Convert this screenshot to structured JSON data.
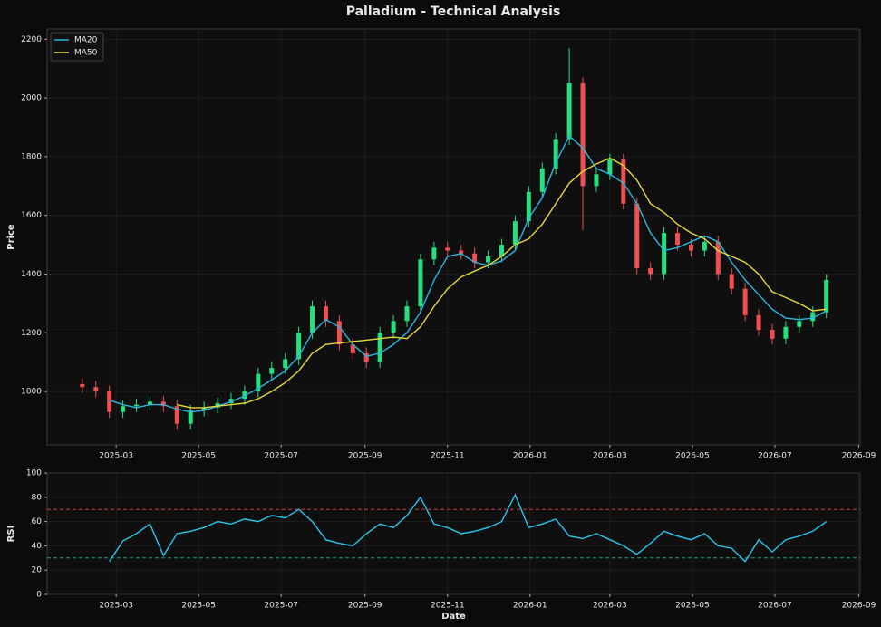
{
  "chart_data": [
    {
      "type": "candlestick",
      "title": "Palladium - Technical Analysis",
      "y_label": "Price",
      "x": [
        "2025-02-04",
        "2025-02-14",
        "2025-02-24",
        "2025-03-06",
        "2025-03-16",
        "2025-03-26",
        "2025-04-05",
        "2025-04-15",
        "2025-04-25",
        "2025-05-05",
        "2025-05-15",
        "2025-05-25",
        "2025-06-04",
        "2025-06-14",
        "2025-06-24",
        "2025-07-04",
        "2025-07-14",
        "2025-07-24",
        "2025-08-03",
        "2025-08-13",
        "2025-08-23",
        "2025-09-02",
        "2025-09-12",
        "2025-09-22",
        "2025-10-02",
        "2025-10-12",
        "2025-10-22",
        "2025-11-01",
        "2025-11-11",
        "2025-11-21",
        "2025-12-01",
        "2025-12-11",
        "2025-12-21",
        "2025-12-31",
        "2026-01-10",
        "2026-01-20",
        "2026-01-30",
        "2026-02-09",
        "2026-02-19",
        "2026-03-01",
        "2026-03-11",
        "2026-03-21",
        "2026-03-31",
        "2026-04-10",
        "2026-04-20",
        "2026-04-30",
        "2026-05-10",
        "2026-05-20",
        "2026-05-30",
        "2026-06-09",
        "2026-06-19",
        "2026-06-29",
        "2026-07-09",
        "2026-07-19",
        "2026-07-29",
        "2026-08-08"
      ],
      "open": [
        1025,
        1015,
        1000,
        930,
        950,
        955,
        965,
        950,
        890,
        935,
        945,
        960,
        975,
        1000,
        1060,
        1080,
        1110,
        1200,
        1290,
        1240,
        1160,
        1130,
        1100,
        1200,
        1240,
        1290,
        1450,
        1490,
        1480,
        1470,
        1440,
        1460,
        1500,
        1580,
        1680,
        1760,
        1860,
        2050,
        1700,
        1740,
        1790,
        1640,
        1420,
        1400,
        1540,
        1500,
        1480,
        1510,
        1400,
        1350,
        1260,
        1210,
        1180,
        1220,
        1240,
        1270
      ],
      "high": [
        1045,
        1035,
        1020,
        970,
        975,
        985,
        985,
        970,
        955,
        965,
        980,
        995,
        1020,
        1080,
        1100,
        1130,
        1220,
        1310,
        1310,
        1260,
        1180,
        1150,
        1220,
        1260,
        1310,
        1470,
        1510,
        1510,
        1500,
        1490,
        1480,
        1520,
        1600,
        1700,
        1780,
        1880,
        2170,
        2070,
        1760,
        1810,
        1810,
        1660,
        1440,
        1560,
        1560,
        1520,
        1530,
        1530,
        1420,
        1370,
        1280,
        1230,
        1240,
        1260,
        1290,
        1400
      ],
      "low": [
        995,
        980,
        910,
        910,
        930,
        935,
        930,
        870,
        870,
        915,
        925,
        940,
        955,
        980,
        1040,
        1060,
        1090,
        1180,
        1220,
        1140,
        1110,
        1080,
        1080,
        1180,
        1220,
        1270,
        1430,
        1460,
        1450,
        1420,
        1420,
        1440,
        1480,
        1560,
        1660,
        1740,
        1840,
        1550,
        1680,
        1720,
        1620,
        1400,
        1380,
        1380,
        1480,
        1460,
        1460,
        1380,
        1330,
        1240,
        1190,
        1160,
        1160,
        1200,
        1220,
        1250
      ],
      "close": [
        1015,
        1000,
        930,
        950,
        955,
        965,
        950,
        890,
        935,
        945,
        960,
        975,
        1000,
        1060,
        1080,
        1110,
        1200,
        1290,
        1240,
        1160,
        1130,
        1100,
        1200,
        1240,
        1290,
        1450,
        1490,
        1480,
        1470,
        1440,
        1460,
        1500,
        1580,
        1680,
        1760,
        1860,
        2050,
        1700,
        1740,
        1790,
        1640,
        1420,
        1400,
        1540,
        1500,
        1480,
        1510,
        1400,
        1350,
        1260,
        1210,
        1180,
        1220,
        1240,
        1270,
        1380
      ],
      "up_color": "#26e07f",
      "down_color": "#ef4f4f",
      "series": [
        {
          "name": "MA20",
          "color": "#29b6e0",
          "values": [
            null,
            null,
            970,
            955,
            945,
            955,
            955,
            940,
            930,
            935,
            950,
            965,
            985,
            1010,
            1040,
            1070,
            1120,
            1200,
            1245,
            1220,
            1160,
            1120,
            1130,
            1160,
            1200,
            1270,
            1380,
            1460,
            1470,
            1440,
            1430,
            1445,
            1480,
            1590,
            1660,
            1780,
            1870,
            1830,
            1760,
            1740,
            1710,
            1640,
            1540,
            1480,
            1490,
            1510,
            1530,
            1510,
            1440,
            1380,
            1330,
            1280,
            1250,
            1245,
            1250,
            1275
          ]
        },
        {
          "name": "MA50",
          "color": "#e6d838",
          "values": [
            null,
            null,
            null,
            null,
            null,
            null,
            null,
            955,
            945,
            945,
            950,
            955,
            960,
            975,
            1000,
            1030,
            1070,
            1130,
            1160,
            1165,
            1170,
            1175,
            1180,
            1185,
            1180,
            1220,
            1290,
            1350,
            1390,
            1410,
            1430,
            1460,
            1500,
            1520,
            1570,
            1640,
            1710,
            1750,
            1775,
            1795,
            1770,
            1720,
            1640,
            1610,
            1570,
            1540,
            1520,
            1480,
            1460,
            1440,
            1400,
            1340,
            1320,
            1300,
            1275,
            1280
          ]
        }
      ],
      "legend": "upper left",
      "grid": true,
      "xlim": [
        "2025-01-09",
        "2026-09-02"
      ],
      "xticks": [
        {
          "value": "2025-03-01",
          "label": "2025-03"
        },
        {
          "value": "2025-05-01",
          "label": "2025-05"
        },
        {
          "value": "2025-07-01",
          "label": "2025-07"
        },
        {
          "value": "2025-09-01",
          "label": "2025-09"
        },
        {
          "value": "2025-11-01",
          "label": "2025-11"
        },
        {
          "value": "2026-01-01",
          "label": "2026-01"
        },
        {
          "value": "2026-03-01",
          "label": "2026-03"
        },
        {
          "value": "2026-05-01",
          "label": "2026-05"
        },
        {
          "value": "2026-07-01",
          "label": "2026-07"
        },
        {
          "value": "2026-09-01",
          "label": "2026-09"
        }
      ],
      "ylim": [
        818,
        2235
      ],
      "yticks": [
        1000,
        1200,
        1400,
        1600,
        1800,
        2000,
        2200
      ]
    },
    {
      "type": "line",
      "y_label": "RSI",
      "x_label": "Date",
      "color": "#29c5ec",
      "x": [
        "2025-02-04",
        "2025-02-14",
        "2025-02-24",
        "2025-03-06",
        "2025-03-16",
        "2025-03-26",
        "2025-04-05",
        "2025-04-15",
        "2025-04-25",
        "2025-05-05",
        "2025-05-15",
        "2025-05-25",
        "2025-06-04",
        "2025-06-14",
        "2025-06-24",
        "2025-07-04",
        "2025-07-14",
        "2025-07-24",
        "2025-08-03",
        "2025-08-13",
        "2025-08-23",
        "2025-09-02",
        "2025-09-12",
        "2025-09-22",
        "2025-10-02",
        "2025-10-12",
        "2025-10-22",
        "2025-11-01",
        "2025-11-11",
        "2025-11-21",
        "2025-12-01",
        "2025-12-11",
        "2025-12-21",
        "2025-12-31",
        "2026-01-10",
        "2026-01-20",
        "2026-01-30",
        "2026-02-09",
        "2026-02-19",
        "2026-03-01",
        "2026-03-11",
        "2026-03-21",
        "2026-03-31",
        "2026-04-10",
        "2026-04-20",
        "2026-04-30",
        "2026-05-10",
        "2026-05-20",
        "2026-05-30",
        "2026-06-09",
        "2026-06-19",
        "2026-06-29",
        "2026-07-09",
        "2026-07-19",
        "2026-07-29",
        "2026-08-08"
      ],
      "values": [
        null,
        null,
        27,
        44,
        50,
        58,
        32,
        50,
        52,
        55,
        60,
        58,
        62,
        60,
        65,
        63,
        70,
        60,
        45,
        42,
        40,
        50,
        58,
        55,
        65,
        80,
        58,
        55,
        50,
        52,
        55,
        60,
        82,
        55,
        58,
        62,
        48,
        46,
        50,
        45,
        40,
        33,
        42,
        52,
        48,
        45,
        50,
        40,
        38,
        27,
        45,
        35,
        45,
        48,
        52,
        60
      ],
      "hlines": [
        {
          "value": 70,
          "color": "#e04848"
        },
        {
          "value": 30,
          "color": "#26c07f"
        }
      ],
      "grid": true,
      "xlim": [
        "2025-01-09",
        "2026-09-02"
      ],
      "xticks": [
        {
          "value": "2025-03-01",
          "label": "2025-03"
        },
        {
          "value": "2025-05-01",
          "label": "2025-05"
        },
        {
          "value": "2025-07-01",
          "label": "2025-07"
        },
        {
          "value": "2025-09-01",
          "label": "2025-09"
        },
        {
          "value": "2025-11-01",
          "label": "2025-11"
        },
        {
          "value": "2026-01-01",
          "label": "2026-01"
        },
        {
          "value": "2026-03-01",
          "label": "2026-03"
        },
        {
          "value": "2026-05-01",
          "label": "2026-05"
        },
        {
          "value": "2026-07-01",
          "label": "2026-07"
        },
        {
          "value": "2026-09-01",
          "label": "2026-09"
        }
      ],
      "ylim": [
        0,
        100
      ],
      "yticks": [
        0,
        20,
        40,
        60,
        80,
        100
      ]
    }
  ]
}
